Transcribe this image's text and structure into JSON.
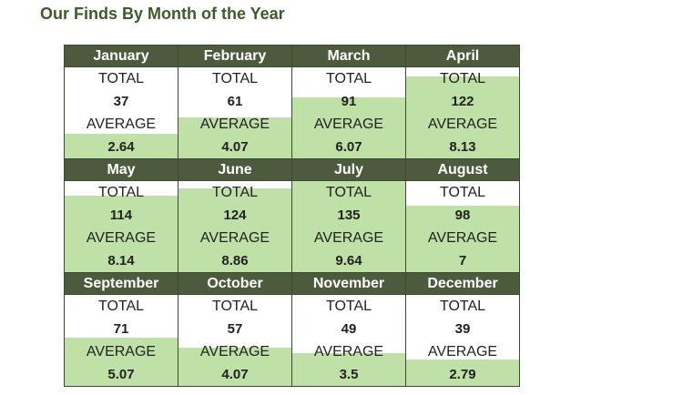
{
  "title": "Our Finds By Month of the Year",
  "labels": {
    "total": "TOTAL",
    "average": "AVERAGE"
  },
  "colors": {
    "header_bg": "#4e5a3d",
    "fill": "#bfe0a6",
    "title": "#3f5a2a"
  },
  "fill_max_total": 135,
  "months": [
    {
      "name": "January",
      "total": "37",
      "average": "2.64"
    },
    {
      "name": "February",
      "total": "61",
      "average": "4.07"
    },
    {
      "name": "March",
      "total": "91",
      "average": "6.07"
    },
    {
      "name": "April",
      "total": "122",
      "average": "8.13"
    },
    {
      "name": "May",
      "total": "114",
      "average": "8.14"
    },
    {
      "name": "June",
      "total": "124",
      "average": "8.86"
    },
    {
      "name": "July",
      "total": "135",
      "average": "9.64"
    },
    {
      "name": "August",
      "total": "98",
      "average": "7"
    },
    {
      "name": "September",
      "total": "71",
      "average": "5.07"
    },
    {
      "name": "October",
      "total": "57",
      "average": "4.07"
    },
    {
      "name": "November",
      "total": "49",
      "average": "3.5"
    },
    {
      "name": "December",
      "total": "39",
      "average": "2.79"
    }
  ]
}
